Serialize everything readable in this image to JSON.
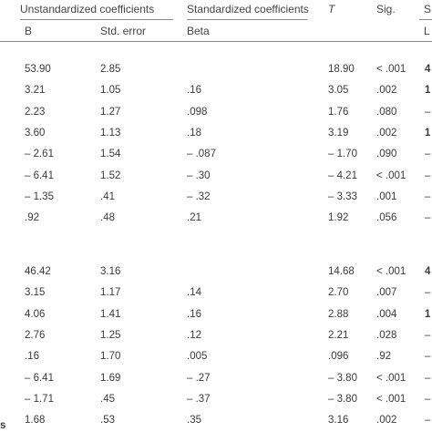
{
  "header": {
    "unstd_title": "Unstandardized coefficients",
    "std_title": "Standardized coefficients",
    "t_label": "T",
    "sig_label": "Sig.",
    "edge_top": "S",
    "col_b": "B",
    "col_se": "Std. error",
    "col_beta": "Beta",
    "edge_sub": "L"
  },
  "block1": [
    {
      "b": "53.90",
      "se": "2.85",
      "beta": "",
      "t": "18.90",
      "sig": "< .001",
      "edge": "4"
    },
    {
      "b": "3.21",
      "se": "1.05",
      "beta": ".16",
      "t": "3.05",
      "sig": ".002",
      "edge": "1"
    },
    {
      "b": "2.23",
      "se": "1.27",
      "beta": ".098",
      "t": "1.76",
      "sig": ".080",
      "edge": "–"
    },
    {
      "b": "3.60",
      "se": "1.13",
      "beta": ".18",
      "t": "3.19",
      "sig": ".002",
      "edge": "1"
    },
    {
      "b": "– 2.61",
      "se": "1.54",
      "beta": "– .087",
      "t": "– 1.70",
      "sig": ".090",
      "edge": "–"
    },
    {
      "b": "– 6.41",
      "se": "1.52",
      "beta": "– .30",
      "t": "– 4.21",
      "sig": "< .001",
      "edge": "–"
    },
    {
      "b": "– 1.35",
      "se": ".41",
      "beta": "– .32",
      "t": "– 3.33",
      "sig": ".001",
      "edge": "–"
    },
    {
      "b": ".92",
      "se": ".48",
      "beta": ".21",
      "t": "1.92",
      "sig": ".056",
      "edge": "–"
    }
  ],
  "block2": [
    {
      "b": "46.42",
      "se": "3.16",
      "beta": "",
      "t": "14.68",
      "sig": "< .001",
      "edge": "4"
    },
    {
      "b": "3.15",
      "se": "1.17",
      "beta": ".14",
      "t": "2.70",
      "sig": ".007",
      "edge": "–"
    },
    {
      "b": "4.06",
      "se": "1.41",
      "beta": ".16",
      "t": "2.88",
      "sig": ".004",
      "edge": "1"
    },
    {
      "b": "2.76",
      "se": "1.25",
      "beta": ".12",
      "t": "2.21",
      "sig": ".028",
      "edge": "–"
    },
    {
      "b": ".16",
      "se": "1.70",
      "beta": ".005",
      "t": ".096",
      "sig": ".92",
      "edge": "–"
    },
    {
      "b": "– 6.41",
      "se": "1.69",
      "beta": "– .27",
      "t": "– 3.80",
      "sig": "< .001",
      "edge": "–"
    },
    {
      "b": "– 1.71",
      "se": ".45",
      "beta": "– .37",
      "t": "– 3.80",
      "sig": "< .001",
      "edge": "–"
    },
    {
      "b": "1.68",
      "se": ".53",
      "beta": ".35",
      "t": "3.16",
      "sig": ".002",
      "edge": "–"
    }
  ],
  "left_edge_label": "s"
}
